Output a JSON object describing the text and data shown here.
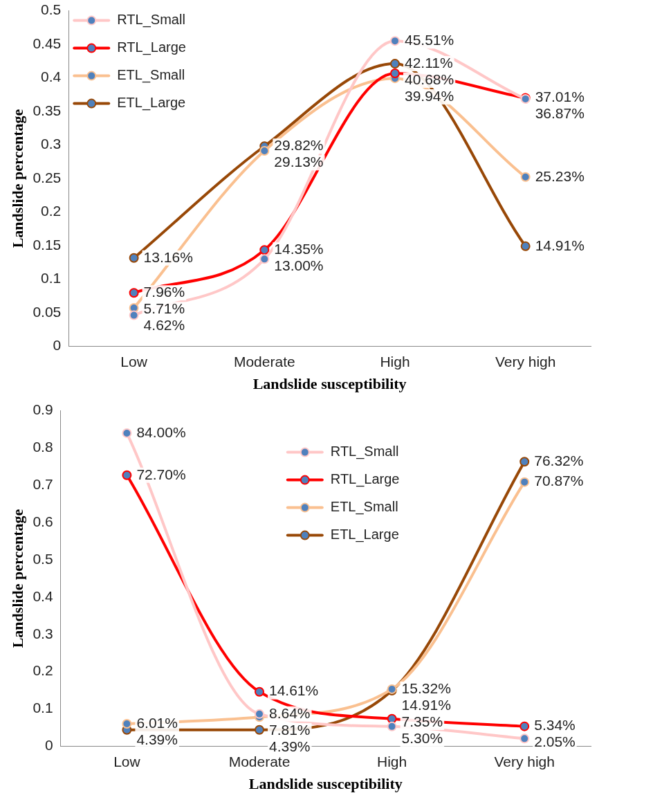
{
  "chart_data": [
    {
      "type": "line",
      "xlabel": "Landslide susceptibility",
      "ylabel": "Landslide percentage",
      "categories": [
        "Low",
        "Moderate",
        "High",
        "Very high"
      ],
      "ylim": [
        0,
        0.5
      ],
      "yticks": [
        0,
        0.05,
        0.1,
        0.15,
        0.2,
        0.25,
        0.3,
        0.35,
        0.4,
        0.45,
        0.5
      ],
      "grid": false,
      "legend": "top left",
      "marker": "circle",
      "series": [
        {
          "name": "RTL_Small",
          "color": "#ffc7c7",
          "values": [
            0.0462,
            0.13,
            0.4551,
            0.3687
          ],
          "value_labels": [
            "4.62%",
            "13.00%",
            "45.51%",
            "36.87%"
          ]
        },
        {
          "name": "RTL_Large",
          "color": "#ff0000",
          "values": [
            0.0796,
            0.1435,
            0.4068,
            0.3701
          ],
          "value_labels": [
            "7.96%",
            "14.35%",
            "40.68%",
            "37.01%"
          ]
        },
        {
          "name": "ETL_Small",
          "color": "#fac090",
          "values": [
            0.0571,
            0.2913,
            0.3994,
            0.2523
          ],
          "value_labels": [
            "5.71%",
            "29.13%",
            "39.94%",
            "25.23%"
          ]
        },
        {
          "name": "ETL_Large",
          "color": "#984807",
          "values": [
            0.1316,
            0.2982,
            0.4211,
            0.1491
          ],
          "value_labels": [
            "13.16%",
            "29.82%",
            "42.11%",
            "14.91%"
          ]
        }
      ]
    },
    {
      "type": "line",
      "xlabel": "Landslide susceptibility",
      "ylabel": "Landslide percentage",
      "categories": [
        "Low",
        "Moderate",
        "High",
        "Very high"
      ],
      "ylim": [
        0,
        0.9
      ],
      "yticks": [
        0,
        0.1,
        0.2,
        0.3,
        0.4,
        0.5,
        0.6,
        0.7,
        0.8,
        0.9
      ],
      "grid": false,
      "legend": "top",
      "marker": "circle",
      "series": [
        {
          "name": "RTL_Small",
          "color": "#ffc7c7",
          "values": [
            0.84,
            0.0864,
            0.053,
            0.0205
          ],
          "value_labels": [
            "84.00%",
            "8.64%",
            "5.30%",
            "2.05%"
          ]
        },
        {
          "name": "RTL_Large",
          "color": "#ff0000",
          "values": [
            0.727,
            0.1461,
            0.0735,
            0.0534
          ],
          "value_labels": [
            "72.70%",
            "14.61%",
            "7.35%",
            "5.34%"
          ]
        },
        {
          "name": "ETL_Small",
          "color": "#fac090",
          "values": [
            0.0601,
            0.0781,
            0.1532,
            0.7087
          ],
          "value_labels": [
            "6.01%",
            "7.81%",
            "15.32%",
            "70.87%"
          ]
        },
        {
          "name": "ETL_Large",
          "color": "#984807",
          "values": [
            0.0439,
            0.0439,
            0.1491,
            0.7632
          ],
          "value_labels": [
            "4.39%",
            "4.39%",
            "14.91%",
            "76.32%"
          ]
        }
      ]
    }
  ]
}
